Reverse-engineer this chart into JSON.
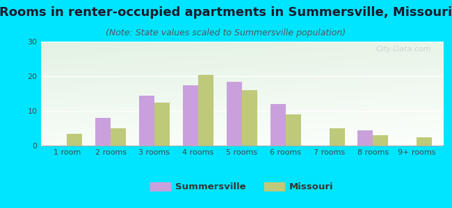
{
  "title": "Rooms in renter-occupied apartments in Summersville, Missouri",
  "subtitle": "(Note: State values scaled to Summersville population)",
  "categories": [
    "1 room",
    "2 rooms",
    "3 rooms",
    "4 rooms",
    "5 rooms",
    "6 rooms",
    "7 rooms",
    "8 rooms",
    "9+ rooms"
  ],
  "summersville": [
    0,
    8,
    14.5,
    17.5,
    18.5,
    12,
    0,
    4.5,
    0
  ],
  "missouri": [
    3.5,
    5,
    12.5,
    20.5,
    16,
    9,
    5,
    3,
    2.5
  ],
  "summersville_color": "#c9a0dc",
  "missouri_color": "#bec97a",
  "background_outer": "#00e5ff",
  "grad_topleft": "#d8ede0",
  "grad_topright": "#e8f0e8",
  "grad_bottomleft": "#c8dfc8",
  "grad_white": "#f5faf5",
  "ylim": [
    0,
    30
  ],
  "yticks": [
    0,
    10,
    20,
    30
  ],
  "bar_width": 0.35,
  "legend_summersville": "Summersville",
  "legend_missouri": "Missouri",
  "title_fontsize": 13,
  "subtitle_fontsize": 9,
  "tick_fontsize": 8
}
